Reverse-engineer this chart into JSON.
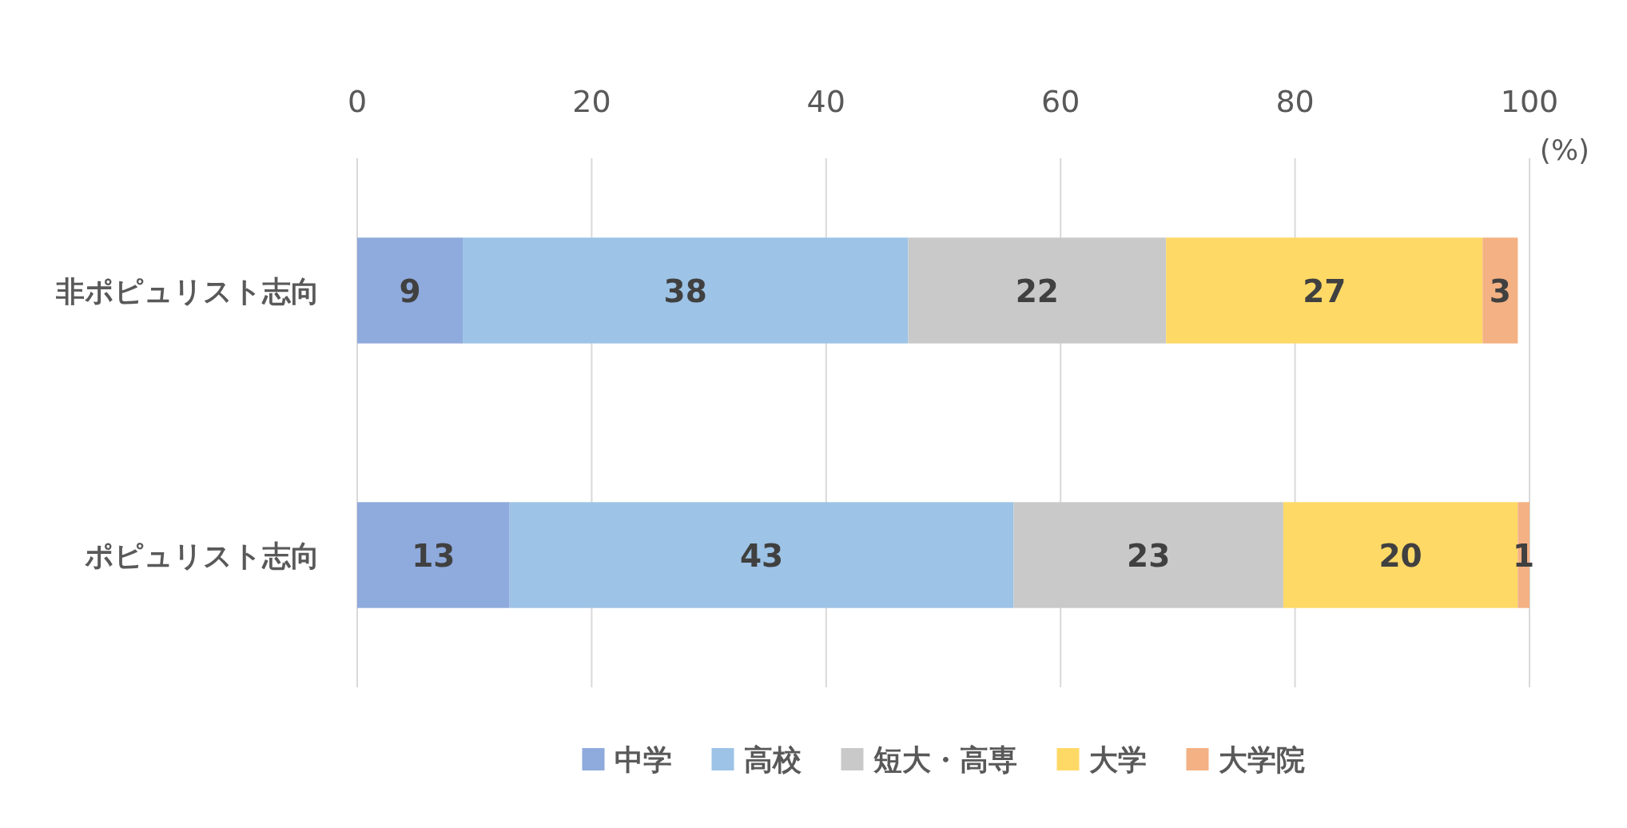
{
  "chart_data": {
    "type": "bar",
    "orientation": "horizontal",
    "stacked": true,
    "categories": [
      "非ポピュリスト志向",
      "ポピュリスト志向"
    ],
    "series": [
      {
        "name": "中学",
        "color": "#8faadc",
        "values": [
          9,
          13
        ]
      },
      {
        "name": "高校",
        "color": "#9dc3e6",
        "values": [
          38,
          43
        ]
      },
      {
        "name": "短大・高専",
        "color": "#c9c9c9",
        "values": [
          22,
          23
        ]
      },
      {
        "name": "大学",
        "color": "#ffd966",
        "values": [
          27,
          20
        ]
      },
      {
        "name": "大学院",
        "color": "#f4b183",
        "values": [
          3,
          1
        ]
      }
    ],
    "xlim": [
      0,
      100
    ],
    "xticks": [
      0,
      20,
      40,
      60,
      80,
      100
    ],
    "xlabel": "(%)",
    "grid": "x",
    "legend": "bottom",
    "data_labels": true
  }
}
